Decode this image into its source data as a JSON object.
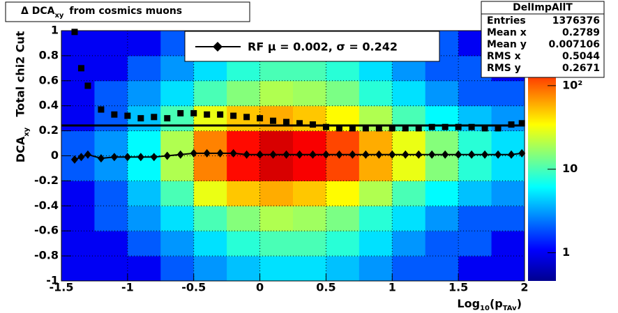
{
  "chart_data": {
    "type": "heatmap",
    "title": {
      "prefix": "Δ DCA",
      "sub": "xy",
      "rest": "from cosmics muons"
    },
    "y_label": {
      "upper": "Total chi2 Cut",
      "main": "DCA",
      "sub": "xy"
    },
    "x_label": {
      "main": "Log",
      "sub": "10",
      "mid": "(p",
      "sub2": "TAv",
      "end": ")"
    },
    "xlim": [
      -1.5,
      2
    ],
    "ylim": [
      -1,
      1
    ],
    "xticks": [
      -1.5,
      -1,
      -0.5,
      0,
      0.5,
      1,
      1.5,
      2
    ],
    "yticks": [
      -1,
      -0.8,
      -0.6,
      -0.4,
      -0.2,
      0,
      0.2,
      0.4,
      0.6,
      0.8,
      1
    ],
    "grid": true,
    "xbins": [
      -1.5,
      -1.25,
      -1,
      -0.75,
      -0.5,
      -0.25,
      0,
      0.25,
      0.5,
      0.75,
      1,
      1.25,
      1.5,
      1.75,
      2
    ],
    "ybins": [
      -1,
      -0.8,
      -0.6,
      -0.4,
      -0.2,
      0,
      0.2,
      0.4,
      0.6,
      0.8,
      1
    ],
    "z": [
      [
        1,
        1,
        1,
        2,
        3,
        4,
        5,
        5,
        4,
        3,
        2,
        2,
        1,
        1
      ],
      [
        1,
        1,
        2,
        3,
        5,
        8,
        10,
        10,
        8,
        5,
        3,
        2,
        2,
        1
      ],
      [
        1,
        2,
        3,
        5,
        10,
        15,
        20,
        18,
        14,
        8,
        5,
        3,
        2,
        2
      ],
      [
        1,
        2,
        4,
        10,
        30,
        50,
        60,
        50,
        35,
        20,
        10,
        6,
        4,
        3
      ],
      [
        2,
        3,
        6,
        20,
        80,
        180,
        250,
        200,
        120,
        60,
        30,
        15,
        8,
        5
      ],
      [
        2,
        3,
        6,
        20,
        80,
        180,
        250,
        200,
        120,
        60,
        30,
        15,
        8,
        5
      ],
      [
        1,
        2,
        4,
        10,
        30,
        50,
        60,
        50,
        35,
        20,
        10,
        6,
        4,
        3
      ],
      [
        1,
        2,
        3,
        5,
        10,
        15,
        20,
        18,
        14,
        8,
        5,
        3,
        2,
        2
      ],
      [
        1,
        1,
        2,
        3,
        5,
        8,
        10,
        10,
        8,
        5,
        3,
        2,
        2,
        1
      ],
      [
        1,
        1,
        1,
        2,
        3,
        4,
        5,
        5,
        4,
        3,
        2,
        2,
        1,
        1
      ]
    ],
    "zlim": [
      0.46,
      455
    ],
    "zscale": "log",
    "zticks": [
      1,
      10,
      {
        "value": 100,
        "label": "10²"
      }
    ],
    "palette": [
      "#00008f",
      "#0000ff",
      "#0080ff",
      "#00ffff",
      "#80ff80",
      "#ffff00",
      "#ff8000",
      "#ff0000",
      "#800000"
    ],
    "x": [
      -1.4,
      -1.35,
      -1.3,
      -1.2,
      -1.1,
      -1.0,
      -0.9,
      -0.8,
      -0.7,
      -0.6,
      -0.5,
      -0.4,
      -0.3,
      -0.2,
      -0.1,
      0,
      0.1,
      0.2,
      0.3,
      0.4,
      0.5,
      0.6,
      0.7,
      0.8,
      0.9,
      1.0,
      1.1,
      1.2,
      1.3,
      1.4,
      1.5,
      1.6,
      1.7,
      1.8,
      1.9,
      1.98
    ],
    "series": [
      {
        "marker": "square",
        "color": "#000000",
        "values": [
          0.99,
          0.7,
          0.56,
          0.37,
          0.33,
          0.32,
          0.3,
          0.31,
          0.3,
          0.34,
          0.34,
          0.33,
          0.33,
          0.32,
          0.31,
          0.3,
          0.28,
          0.27,
          0.26,
          0.25,
          0.23,
          0.22,
          0.22,
          0.22,
          0.22,
          0.22,
          0.22,
          0.22,
          0.23,
          0.23,
          0.23,
          0.23,
          0.22,
          0.22,
          0.25,
          0.26
        ]
      },
      {
        "marker": "diamond",
        "color": "#000000",
        "values": [
          -0.03,
          -0.01,
          0.01,
          -0.02,
          -0.01,
          -0.01,
          -0.01,
          -0.01,
          0.0,
          0.01,
          0.02,
          0.02,
          0.02,
          0.02,
          0.01,
          0.01,
          0.01,
          0.01,
          0.01,
          0.01,
          0.01,
          0.01,
          0.01,
          0.01,
          0.01,
          0.01,
          0.01,
          0.01,
          0.01,
          0.01,
          0.01,
          0.01,
          0.01,
          0.01,
          0.01,
          0.02
        ]
      }
    ],
    "cut_line": 0.242,
    "legend": "RF μ =  0.002, σ =   0.242",
    "stats": {
      "name": "DelImpAllT",
      "rows": [
        [
          "Entries",
          1376376
        ],
        [
          "Mean x",
          0.2789
        ],
        [
          "Mean y",
          0.007106
        ],
        [
          "RMS x",
          0.5044
        ],
        [
          "RMS y",
          0.2671
        ]
      ]
    }
  }
}
